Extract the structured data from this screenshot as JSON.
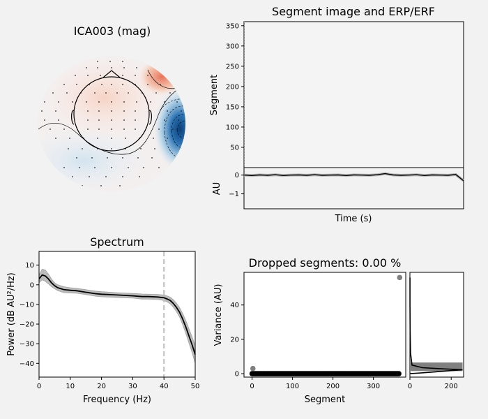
{
  "chart_data": [
    {
      "type": "heatmap",
      "panel": "topomap",
      "title": "ICA003 (mag)",
      "colormap": "blue-white-red",
      "extrema": [
        {
          "polarity": "positive",
          "location": "upper-right"
        },
        {
          "polarity": "negative",
          "location": "right"
        }
      ]
    },
    {
      "type": "heatmap",
      "panel": "segment-image",
      "title": "Segment image and ERP/ERF",
      "ylabel": "Segment",
      "yticks": [
        50,
        100,
        150,
        200,
        250,
        300,
        350
      ],
      "ylim": [
        0,
        360
      ]
    },
    {
      "type": "line",
      "panel": "erp",
      "xlabel": "Time (s)",
      "ylabel": "AU",
      "yticks": [
        0,
        -1
      ],
      "ylim": [
        -1.8,
        0.4
      ],
      "series": [
        {
          "values": [
            0,
            -0.02,
            0.01,
            -0.01,
            0.02,
            -0.02,
            0,
            0.01,
            -0.01,
            0.02,
            -0.01,
            0,
            0.01,
            -0.02,
            0.01,
            0,
            -0.01,
            0.02,
            0.08,
            0.01,
            -0.01,
            0,
            0.02,
            -0.02,
            0.01,
            0,
            -0.01,
            0.03,
            -0.3
          ]
        }
      ]
    },
    {
      "type": "line",
      "panel": "spectrum",
      "title": "Spectrum",
      "xlabel": "Frequency (Hz)",
      "ylabel": "Power (dB AU²/Hz)",
      "xlim": [
        0,
        50
      ],
      "ylim": [
        -47,
        17
      ],
      "xticks": [
        0,
        10,
        20,
        30,
        40,
        50
      ],
      "yticks": [
        10,
        0,
        -10,
        -20,
        -30,
        -40
      ],
      "vline": 40,
      "x": [
        0,
        1,
        2,
        3,
        4,
        5,
        6,
        8,
        10,
        12,
        15,
        18,
        20,
        25,
        30,
        33,
        35,
        38,
        40,
        41,
        42,
        43,
        44,
        45,
        46,
        47,
        48,
        49,
        50
      ],
      "series": [
        {
          "values": [
            3,
            5,
            4.5,
            3,
            1,
            -0.5,
            -1.5,
            -2.5,
            -2.8,
            -3,
            -3.8,
            -4.5,
            -4.8,
            -5.2,
            -5.6,
            -6,
            -6,
            -6.2,
            -6.6,
            -7.2,
            -8,
            -9.5,
            -11.5,
            -14,
            -17.5,
            -21.5,
            -26,
            -30.5,
            -35.5
          ]
        },
        {
          "values": [
            5,
            8,
            7.5,
            5.5,
            3,
            1,
            0,
            -1,
            -1.5,
            -1.8,
            -2.5,
            -3.2,
            -3.5,
            -4,
            -4.4,
            -4.7,
            -4.8,
            -4.9,
            -5.2,
            -5.7,
            -6.3,
            -7.6,
            -9.3,
            -11.6,
            -14.6,
            -18.2,
            -22.3,
            -26.5,
            -31
          ]
        },
        {
          "values": [
            1,
            2.5,
            1.8,
            0.5,
            -1,
            -2,
            -3,
            -4,
            -4.2,
            -4.3,
            -5,
            -5.8,
            -6.1,
            -6.5,
            -6.8,
            -7.3,
            -7.3,
            -7.5,
            -8,
            -8.7,
            -9.7,
            -11.4,
            -13.7,
            -16.4,
            -20.4,
            -24.8,
            -29.7,
            -34.5,
            -40
          ]
        }
      ]
    },
    {
      "type": "scatter",
      "panel": "variance",
      "title": "Dropped segments: 0.00 %",
      "xlabel": "Segment",
      "ylabel": "Variance (AU)",
      "xlim": [
        -20,
        380
      ],
      "ylim": [
        -2,
        59
      ],
      "xticks": [
        0,
        100,
        200,
        300
      ],
      "yticks": [
        0,
        20,
        40
      ],
      "n_segments": 365,
      "baseline": 0,
      "outliers": [
        {
          "x": 2,
          "y": 3
        },
        {
          "x": 365,
          "y": 56
        }
      ]
    },
    {
      "type": "line",
      "panel": "variance-histogram",
      "xticks": [
        0,
        200
      ],
      "xlim": [
        0,
        260
      ],
      "ylim": [
        -2,
        59
      ],
      "bar": {
        "range": [
          1.5,
          6.5
        ],
        "length": 255
      },
      "density": [
        [
          0,
          0
        ],
        [
          40,
          0.3
        ],
        [
          120,
          1
        ],
        [
          200,
          1.8
        ],
        [
          255,
          2.3
        ],
        [
          160,
          2.8
        ],
        [
          60,
          3.5
        ],
        [
          10,
          5
        ],
        [
          3,
          12
        ],
        [
          1,
          25
        ],
        [
          0.5,
          40
        ],
        [
          0.2,
          56
        ]
      ]
    }
  ]
}
